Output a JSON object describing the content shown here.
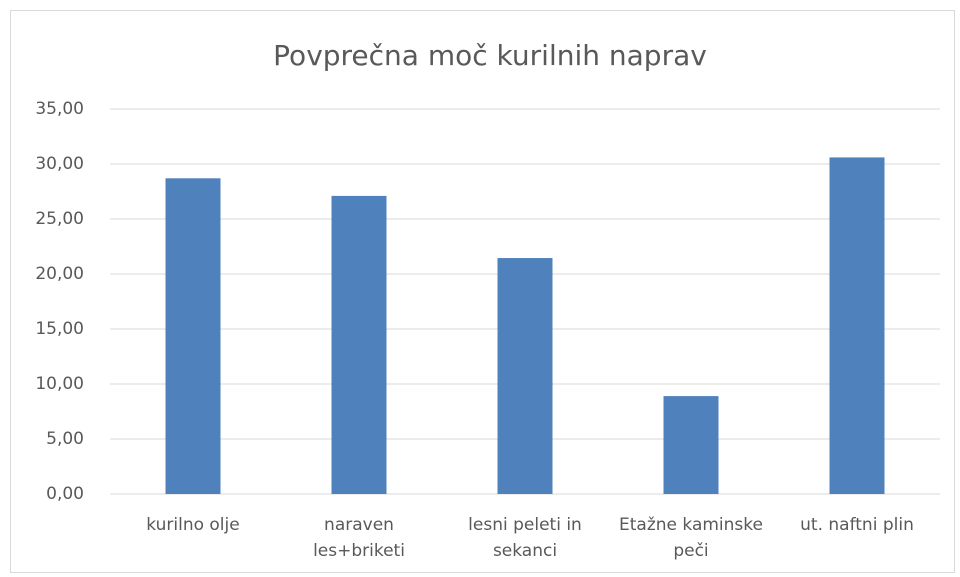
{
  "chart_data": {
    "type": "bar",
    "title": "Povprečna moč kurilnih naprav",
    "categories": [
      "kurilno olje",
      "naraven les+briketi",
      "lesni peleti in sekanci",
      "Etažne kaminske peči",
      "ut. naftni plin"
    ],
    "values": [
      28.7,
      27.1,
      21.45,
      8.9,
      30.6
    ],
    "color": "#4f81bd",
    "ylim": [
      0,
      35
    ],
    "yticks": [
      {
        "value": 0,
        "label": "0,00"
      },
      {
        "value": 5,
        "label": "5,00"
      },
      {
        "value": 10,
        "label": "10,00"
      },
      {
        "value": 15,
        "label": "15,00"
      },
      {
        "value": 20,
        "label": "20,00"
      },
      {
        "value": 25,
        "label": "25,00"
      },
      {
        "value": 30,
        "label": "30,00"
      },
      {
        "value": 35,
        "label": "35,00"
      }
    ],
    "grid": true
  }
}
